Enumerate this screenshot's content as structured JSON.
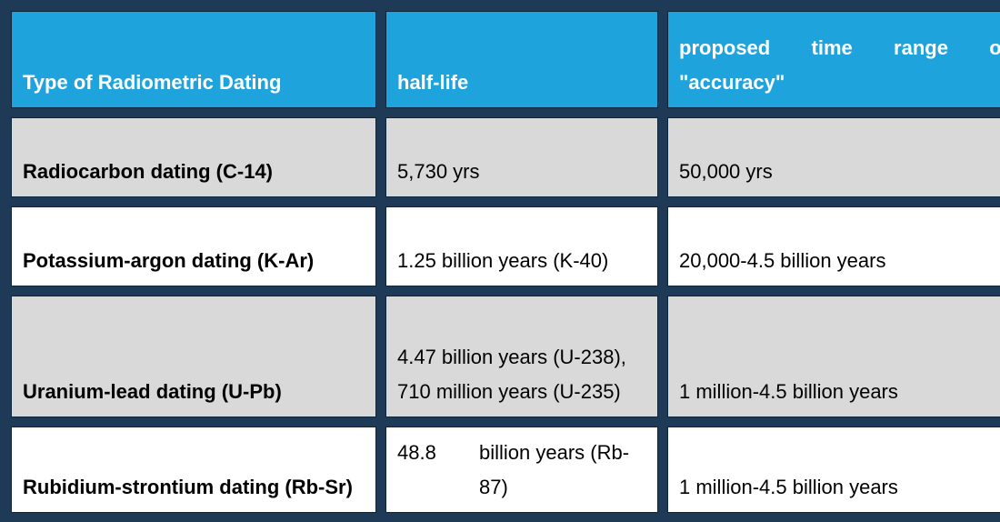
{
  "table": {
    "headers": [
      "Type of Radiometric Dating",
      "half-life",
      "proposed time range of \"accuracy\""
    ],
    "rows": [
      {
        "type": "Radiocarbon dating (C-14)",
        "half_life": "5,730 yrs",
        "range": "50,000 yrs"
      },
      {
        "type": "Potassium-argon dating (K-Ar)",
        "half_life": "1.25 billion years (K-40)",
        "range": "20,000-4.5 billion years"
      },
      {
        "type": "Uranium-lead dating (U-Pb)",
        "half_life": "4.47 billion years (U-238),  710 million years (U-235)",
        "range": "1 million-4.5 billion years"
      },
      {
        "type": "Rubidium-strontium dating (Rb-Sr)",
        "half_life_value": "48.8",
        "half_life_unit": "billion years (Rb-87)",
        "range": "1 million-4.5 billion years"
      }
    ]
  },
  "colors": {
    "header_bg": "#1fa3dc",
    "frame": "#1f3a57",
    "row_gray": "#d9d9d9",
    "row_white": "#ffffff"
  }
}
